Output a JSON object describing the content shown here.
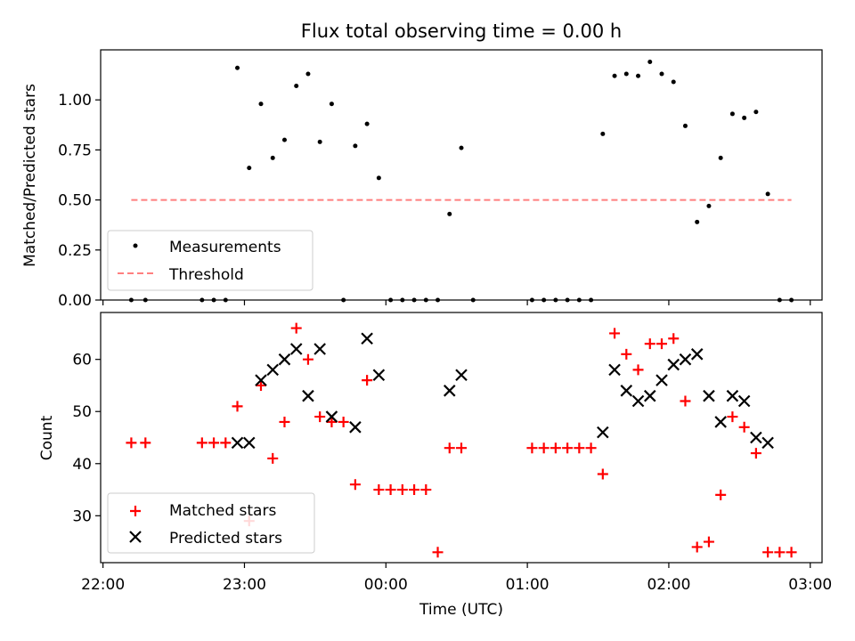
{
  "chart_data": [
    {
      "type": "scatter",
      "title": "Flux total observing time = 0.00 h",
      "xlabel": "",
      "ylabel": "Matched/Predicted stars",
      "xlim": [
        "21:59",
        "03:05"
      ],
      "ylim": [
        0,
        1.25
      ],
      "yticks": [
        "0.00",
        "0.25",
        "0.50",
        "0.75",
        "1.00"
      ],
      "grid": false,
      "legend_position": "lower-left",
      "series": [
        {
          "name": "Measurements",
          "marker": "dot",
          "color": "#000000",
          "points": [
            [
              "22:12",
              0.0
            ],
            [
              "22:18",
              0.0
            ],
            [
              "22:42",
              0.0
            ],
            [
              "22:47",
              0.0
            ],
            [
              "22:52",
              0.0
            ],
            [
              "22:57",
              1.16
            ],
            [
              "23:02",
              0.66
            ],
            [
              "23:07",
              0.98
            ],
            [
              "23:12",
              0.71
            ],
            [
              "23:17",
              0.8
            ],
            [
              "23:22",
              1.07
            ],
            [
              "23:27",
              1.13
            ],
            [
              "23:32",
              0.79
            ],
            [
              "23:37",
              0.98
            ],
            [
              "23:42",
              0.0
            ],
            [
              "23:47",
              0.77
            ],
            [
              "23:52",
              0.88
            ],
            [
              "23:57",
              0.61
            ],
            [
              "00:02",
              0.0
            ],
            [
              "00:07",
              0.0
            ],
            [
              "00:12",
              0.0
            ],
            [
              "00:17",
              0.0
            ],
            [
              "00:22",
              0.0
            ],
            [
              "00:27",
              0.43
            ],
            [
              "00:32",
              0.76
            ],
            [
              "00:37",
              0.0
            ],
            [
              "01:02",
              0.0
            ],
            [
              "01:07",
              0.0
            ],
            [
              "01:12",
              0.0
            ],
            [
              "01:17",
              0.0
            ],
            [
              "01:22",
              0.0
            ],
            [
              "01:27",
              0.0
            ],
            [
              "01:32",
              0.83
            ],
            [
              "01:37",
              1.12
            ],
            [
              "01:42",
              1.13
            ],
            [
              "01:47",
              1.12
            ],
            [
              "01:52",
              1.19
            ],
            [
              "01:57",
              1.13
            ],
            [
              "02:02",
              1.09
            ],
            [
              "02:07",
              0.87
            ],
            [
              "02:12",
              0.39
            ],
            [
              "02:17",
              0.47
            ],
            [
              "02:22",
              0.71
            ],
            [
              "02:27",
              0.93
            ],
            [
              "02:32",
              0.91
            ],
            [
              "02:37",
              0.94
            ],
            [
              "02:42",
              0.53
            ],
            [
              "02:47",
              0.0
            ],
            [
              "02:52",
              0.0
            ]
          ]
        },
        {
          "name": "Threshold",
          "marker": "dashed-line",
          "color": "#ff7f7f",
          "points": [
            [
              "22:12",
              0.5
            ],
            [
              "02:52",
              0.5
            ]
          ]
        }
      ]
    },
    {
      "type": "scatter",
      "title": "",
      "xlabel": "Time (UTC)",
      "ylabel": "Count",
      "xlim": [
        "21:59",
        "03:05"
      ],
      "ylim": [
        21,
        69
      ],
      "yticks": [
        "30",
        "40",
        "50",
        "60"
      ],
      "xticks": [
        "22:00",
        "23:00",
        "00:00",
        "01:00",
        "02:00",
        "03:00"
      ],
      "grid": false,
      "legend_position": "lower-left",
      "series": [
        {
          "name": "Matched stars",
          "marker": "plus",
          "color": "#ff0000",
          "points": [
            [
              "22:12",
              44
            ],
            [
              "22:18",
              44
            ],
            [
              "22:42",
              44
            ],
            [
              "22:47",
              44
            ],
            [
              "22:52",
              44
            ],
            [
              "22:57",
              51
            ],
            [
              "23:02",
              29
            ],
            [
              "23:07",
              55
            ],
            [
              "23:12",
              41
            ],
            [
              "23:17",
              48
            ],
            [
              "23:22",
              66
            ],
            [
              "23:27",
              60
            ],
            [
              "23:32",
              49
            ],
            [
              "23:37",
              48
            ],
            [
              "23:42",
              48
            ],
            [
              "23:47",
              36
            ],
            [
              "23:52",
              56
            ],
            [
              "23:57",
              35
            ],
            [
              "00:02",
              35
            ],
            [
              "00:07",
              35
            ],
            [
              "00:12",
              35
            ],
            [
              "00:17",
              35
            ],
            [
              "00:22",
              23
            ],
            [
              "00:27",
              43
            ],
            [
              "00:32",
              43
            ],
            [
              "01:02",
              43
            ],
            [
              "01:07",
              43
            ],
            [
              "01:12",
              43
            ],
            [
              "01:17",
              43
            ],
            [
              "01:22",
              43
            ],
            [
              "01:27",
              43
            ],
            [
              "01:32",
              38
            ],
            [
              "01:37",
              65
            ],
            [
              "01:42",
              61
            ],
            [
              "01:47",
              58
            ],
            [
              "01:52",
              63
            ],
            [
              "01:57",
              63
            ],
            [
              "02:02",
              64
            ],
            [
              "02:07",
              52
            ],
            [
              "02:12",
              24
            ],
            [
              "02:17",
              25
            ],
            [
              "02:22",
              34
            ],
            [
              "02:27",
              49
            ],
            [
              "02:32",
              47
            ],
            [
              "02:37",
              42
            ],
            [
              "02:42",
              23
            ],
            [
              "02:47",
              23
            ],
            [
              "02:52",
              23
            ]
          ]
        },
        {
          "name": "Predicted stars",
          "marker": "x",
          "color": "#000000",
          "points": [
            [
              "22:57",
              44
            ],
            [
              "23:02",
              44
            ],
            [
              "23:07",
              56
            ],
            [
              "23:12",
              58
            ],
            [
              "23:17",
              60
            ],
            [
              "23:22",
              62
            ],
            [
              "23:27",
              53
            ],
            [
              "23:32",
              62
            ],
            [
              "23:37",
              49
            ],
            [
              "23:47",
              47
            ],
            [
              "23:52",
              64
            ],
            [
              "23:57",
              57
            ],
            [
              "00:27",
              54
            ],
            [
              "00:32",
              57
            ],
            [
              "01:32",
              46
            ],
            [
              "01:37",
              58
            ],
            [
              "01:42",
              54
            ],
            [
              "01:47",
              52
            ],
            [
              "01:52",
              53
            ],
            [
              "01:57",
              56
            ],
            [
              "02:02",
              59
            ],
            [
              "02:07",
              60
            ],
            [
              "02:12",
              61
            ],
            [
              "02:17",
              53
            ],
            [
              "02:22",
              48
            ],
            [
              "02:27",
              53
            ],
            [
              "02:32",
              52
            ],
            [
              "02:37",
              45
            ],
            [
              "02:42",
              44
            ]
          ]
        }
      ]
    }
  ]
}
